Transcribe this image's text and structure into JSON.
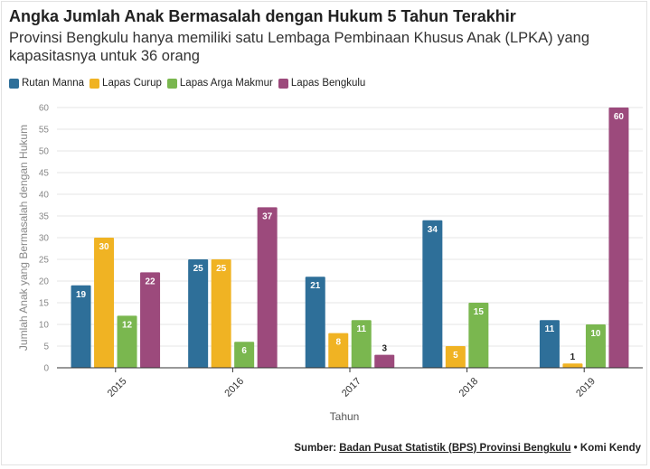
{
  "title": "Angka Jumlah Anak Bermasalah dengan Hukum 5 Tahun Terakhir",
  "subtitle": "Provinsi Bengkulu hanya memiliki satu Lembaga Pembinaan Khusus Anak (LPKA) yang kapasitasnya untuk 36 orang",
  "source": {
    "prefix": "Sumber: ",
    "link": "Badan Pusat Statistik (BPS) Provinsi Bengkulu",
    "separator": " • ",
    "author": "Komi Kendy"
  },
  "chart_data": {
    "type": "bar",
    "categories": [
      "2015",
      "2016",
      "2017",
      "2018",
      "2019"
    ],
    "series": [
      {
        "name": "Rutan Manna",
        "color": "#2e6f99",
        "values": [
          19,
          25,
          21,
          34,
          11
        ]
      },
      {
        "name": "Lapas Curup",
        "color": "#f0b323",
        "values": [
          30,
          25,
          8,
          5,
          1
        ]
      },
      {
        "name": "Lapas Arga Makmur",
        "color": "#7ab74f",
        "values": [
          12,
          6,
          11,
          15,
          10
        ]
      },
      {
        "name": "Lapas Bengkulu",
        "color": "#9c4a7c",
        "values": [
          22,
          37,
          3,
          null,
          60
        ]
      }
    ],
    "xlabel": "Tahun",
    "ylabel": "Jumlah Anak yang Bermasalah dengan Hukum",
    "ylim": [
      0,
      60
    ],
    "yticks": [
      0,
      5,
      10,
      15,
      20,
      25,
      30,
      35,
      40,
      45,
      50,
      55,
      60
    ],
    "grid": true,
    "legend_position": "top-left"
  }
}
